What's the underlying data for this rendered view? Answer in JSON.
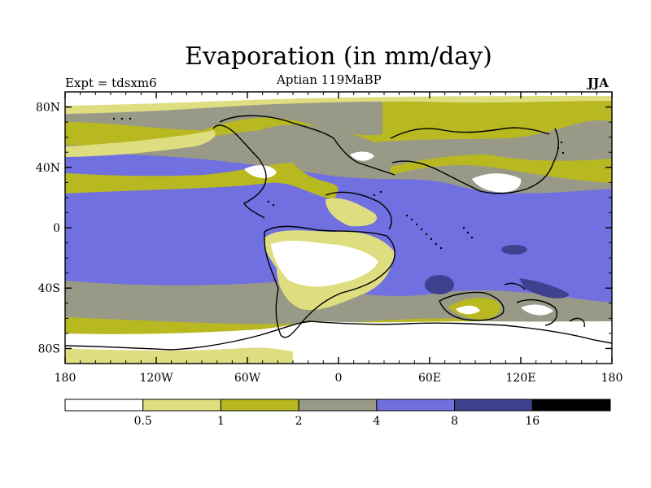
{
  "title": "Evaporation (in mm/day)",
  "expt_label": "Expt = tdsxm6",
  "subtitle": "Aptian   119MaBP",
  "season": "JJA",
  "map": {
    "projection": "cylindrical-equidistant",
    "lon_range": [
      -180,
      180
    ],
    "lat_range": [
      -90,
      90
    ],
    "lat_ticks": [
      {
        "value": 80,
        "label": "80N"
      },
      {
        "value": 40,
        "label": "40N"
      },
      {
        "value": 0,
        "label": "0"
      },
      {
        "value": -40,
        "label": "40S"
      },
      {
        "value": -80,
        "label": "80S"
      }
    ],
    "lon_ticks": [
      {
        "value": -180,
        "label": "180"
      },
      {
        "value": -120,
        "label": "120W"
      },
      {
        "value": -60,
        "label": "60W"
      },
      {
        "value": 0,
        "label": "0"
      },
      {
        "value": 60,
        "label": "60E"
      },
      {
        "value": 120,
        "label": "120E"
      },
      {
        "value": 180,
        "label": "180"
      }
    ]
  },
  "colorbar": {
    "boundaries": [
      "0.5",
      "1",
      "2",
      "4",
      "8",
      "16"
    ],
    "colors": [
      "#ffffff",
      "#dede80",
      "#b8b820",
      "#999988",
      "#7070e0",
      "#404090",
      "#000000"
    ]
  }
}
